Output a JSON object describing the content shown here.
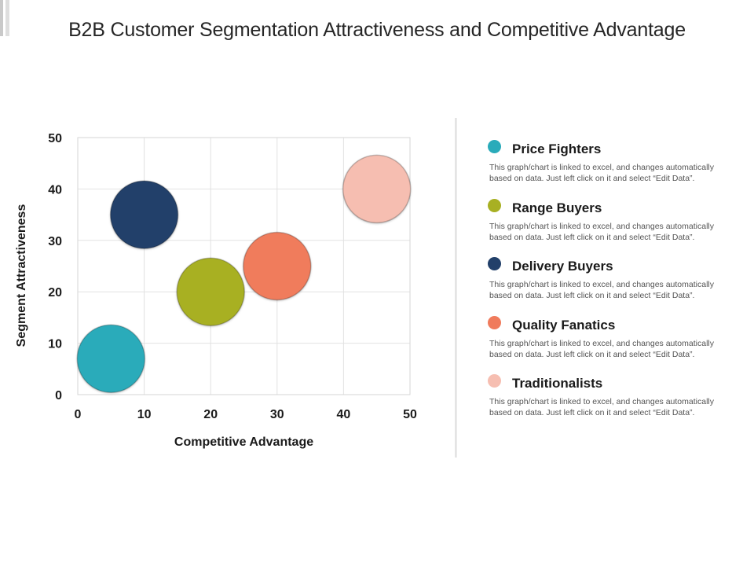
{
  "title": "B2B Customer Segmentation Attractiveness and Competitive Advantage",
  "chart_data": {
    "type": "scatter",
    "xlabel": "Competitive Advantage",
    "ylabel": "Segment Attractiveness",
    "xlim": [
      0,
      50
    ],
    "ylim": [
      0,
      50
    ],
    "x_ticks": [
      "0",
      "10",
      "20",
      "30",
      "40",
      "50"
    ],
    "y_ticks": [
      "0",
      "10",
      "20",
      "30",
      "40",
      "50"
    ],
    "grid": true,
    "legend_position": "right",
    "series": [
      {
        "name": "Price Fighters",
        "x": 5,
        "y": 7,
        "color": "#2AABBA"
      },
      {
        "name": "Range Buyers",
        "x": 20,
        "y": 20,
        "color": "#A8B023"
      },
      {
        "name": "Delivery Buyers",
        "x": 10,
        "y": 35,
        "color": "#22406A"
      },
      {
        "name": "Quality Fanatics",
        "x": 30,
        "y": 25,
        "color": "#F07B5C"
      },
      {
        "name": "Traditionalists",
        "x": 45,
        "y": 40,
        "color": "#F6BEB1"
      }
    ]
  },
  "legend": {
    "items": [
      {
        "name": "Price Fighters",
        "color": "#2AABBA",
        "desc": "This graph/chart is linked to excel, and changes automatically based on data. Just left click on it and select “Edit Data”."
      },
      {
        "name": "Range Buyers",
        "color": "#A8B023",
        "desc": "This graph/chart is linked to excel, and changes automatically based on data. Just left click on it and select “Edit Data”."
      },
      {
        "name": "Delivery Buyers",
        "color": "#22406A",
        "desc": "This graph/chart is linked to excel, and changes automatically based on data. Just left click on it and select “Edit Data”."
      },
      {
        "name": "Quality Fanatics",
        "color": "#F07B5C",
        "desc": "This graph/chart is linked to excel, and changes automatically based on data. Just left click on it and select “Edit Data”."
      },
      {
        "name": "Traditionalists",
        "color": "#F6BEB1",
        "desc": "This graph/chart is linked to excel, and changes automatically based on data. Just left click on it and select “Edit Data”."
      }
    ]
  }
}
